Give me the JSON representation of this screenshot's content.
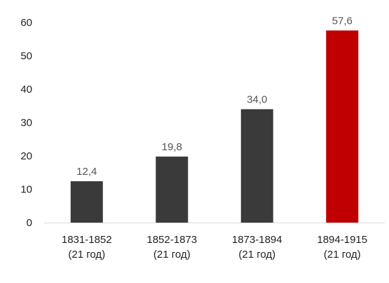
{
  "chart_data": {
    "type": "bar",
    "categories": [
      [
        "1831-1852",
        "(21 год)"
      ],
      [
        "1852-1873",
        "(21 год)"
      ],
      [
        "1873-1894",
        "(21 год)"
      ],
      [
        "1894-1915",
        "(21 год)"
      ]
    ],
    "values": [
      12.4,
      19.8,
      34.0,
      57.6
    ],
    "data_labels": [
      "12,4",
      "19,8",
      "34,0",
      "57,6"
    ],
    "bar_colors": [
      "#3a3a3a",
      "#3a3a3a",
      "#3a3a3a",
      "#c00000"
    ],
    "ylim": [
      0,
      60
    ],
    "yticks": [
      0,
      10,
      20,
      30,
      40,
      50,
      60
    ],
    "title": "",
    "xlabel": "",
    "ylabel": "",
    "grid": false,
    "legend": "none"
  }
}
